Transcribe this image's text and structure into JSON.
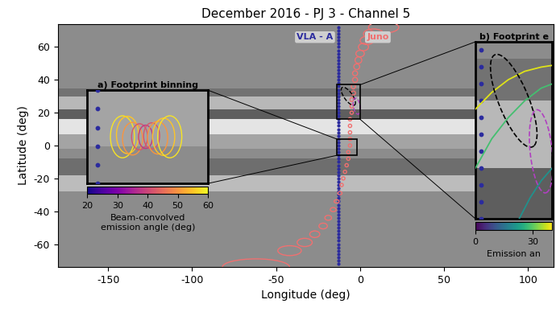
{
  "chart_data": {
    "type": "map",
    "title": "December 2016 - PJ 3 - Channel 5",
    "x_label": "Longitude (deg)",
    "y_label": "Latitude (deg)",
    "xlim": [
      -180,
      115
    ],
    "ylim": [
      -74,
      74
    ],
    "xticks": [
      -150,
      -100,
      -50,
      0,
      50,
      100
    ],
    "yticks": [
      -60,
      -40,
      -20,
      0,
      20,
      40,
      60
    ],
    "background": "#8c8c8c",
    "bands": [
      {
        "lat": [
          7,
          16
        ],
        "color": "#e4e4e4"
      },
      {
        "lat": [
          -2,
          7
        ],
        "color": "#a4a4a4"
      },
      {
        "lat": [
          16,
          22
        ],
        "color": "#5e5e5e"
      },
      {
        "lat": [
          22,
          30
        ],
        "color": "#b8b8b8"
      },
      {
        "lat": [
          30,
          35
        ],
        "color": "#727272"
      },
      {
        "lat": [
          -18,
          -8
        ],
        "color": "#6e6e6e"
      },
      {
        "lat": [
          -28,
          -18
        ],
        "color": "#bcbcbc"
      }
    ],
    "series": [
      {
        "name": "VLA - A",
        "color": "#2b2b9e",
        "lon": [
          -13,
          -13,
          -13,
          -13,
          -13,
          -13,
          -13,
          -13,
          -13,
          -13,
          -13,
          -13,
          -13,
          -13,
          -13,
          -13,
          -13,
          -13,
          -13,
          -13,
          -13,
          -13,
          -13,
          -13,
          -13,
          -13,
          -13,
          -13,
          -13,
          -13,
          -13,
          -13,
          -13,
          -13,
          -13,
          -13,
          -13,
          -13,
          -13,
          -13,
          -13,
          -13,
          -13,
          -13,
          -13,
          -13,
          -13,
          -13,
          -13,
          -13,
          -13,
          -13,
          -13,
          -13,
          -13,
          -13,
          -13,
          -13,
          -13,
          -13,
          -13,
          -13,
          -13,
          -13,
          -13,
          -13,
          -13,
          -13,
          -13,
          -13,
          -13,
          -13,
          -13
        ],
        "lat": [
          -72,
          -70,
          -68,
          -66,
          -64,
          -62,
          -60,
          -58,
          -56,
          -54,
          -52,
          -50,
          -48,
          -46,
          -44,
          -42,
          -40,
          -38,
          -36,
          -34,
          -32,
          -30,
          -28,
          -26,
          -24,
          -22,
          -20,
          -18,
          -16,
          -14,
          -12,
          -10,
          -8,
          -6,
          -4,
          -2,
          0,
          2,
          4,
          6,
          8,
          10,
          12,
          14,
          16,
          18,
          20,
          22,
          24,
          26,
          28,
          30,
          32,
          34,
          36,
          38,
          40,
          42,
          44,
          46,
          48,
          50,
          52,
          54,
          56,
          58,
          60,
          62,
          64,
          66,
          68,
          70,
          72
        ]
      },
      {
        "name": "Juno",
        "color": "#f07070",
        "lon": [
          -62,
          -42,
          -33,
          -27,
          -22,
          -19,
          -16,
          -14,
          -12,
          -11,
          -10,
          -9,
          -8,
          -7,
          -7,
          -6,
          -6,
          -6,
          -6,
          -6,
          -5,
          -5,
          -5,
          -4,
          -4,
          -3,
          -3,
          -2,
          -1,
          0,
          2,
          4,
          8,
          14
        ],
        "lat": [
          -74,
          -64,
          -59,
          -54,
          -49,
          -44,
          -39,
          -34,
          -29,
          -24,
          -20,
          -16,
          -12,
          -8,
          -4,
          0,
          4,
          8,
          12,
          16,
          20,
          24,
          28,
          32,
          36,
          40,
          44,
          48,
          52,
          56,
          60,
          64,
          68,
          72
        ],
        "width": [
          40,
          14,
          9,
          6,
          5,
          4,
          3.5,
          3,
          2.5,
          2,
          2,
          2,
          2,
          2,
          2,
          2,
          2,
          2,
          2,
          2,
          2,
          2,
          2,
          2.5,
          2.5,
          3,
          3,
          3.5,
          4,
          5,
          6,
          8,
          12,
          18
        ],
        "height": [
          10,
          6,
          5,
          4,
          3.5,
          3,
          2.5,
          2,
          2,
          2,
          2,
          2,
          2,
          2,
          2,
          2,
          2,
          2,
          2,
          2,
          2,
          2.5,
          2.5,
          2.5,
          3,
          3,
          3,
          3.5,
          4,
          4,
          4.5,
          5,
          6,
          7
        ]
      }
    ],
    "insets": [
      {
        "title": "a) Footprint binning",
        "xlim": [
          -14,
          -2
        ],
        "ylim": [
          -6,
          4
        ],
        "colorbar": {
          "label": "Beam-convolved\nemission angle (deg)",
          "range": [
            20,
            60
          ],
          "ticks": [
            20,
            30,
            40,
            50,
            60
          ]
        },
        "footprints": {
          "lon": [
            -10.5,
            -10,
            -9.5,
            -8.8,
            -8.2,
            -7.6,
            -7,
            -6.4,
            -5.8
          ],
          "lat": [
            -1,
            -0.8,
            -1.2,
            -1,
            -1,
            -0.9,
            -1.1,
            -1,
            -1
          ],
          "width": [
            2.4,
            2.2,
            2,
            1.6,
            1.4,
            1.6,
            2,
            2.2,
            2.4
          ],
          "height": [
            4.5,
            4,
            3.5,
            2.8,
            2.5,
            2.8,
            3.5,
            4,
            4.5
          ],
          "emission_angle": [
            58,
            55,
            50,
            42,
            38,
            42,
            50,
            55,
            58
          ]
        }
      },
      {
        "title": "b) Footprint e",
        "xlim": [
          -14,
          0
        ],
        "ylim": [
          16,
          37
        ],
        "colorbar": {
          "label": "Emission an",
          "range": [
            0,
            40
          ],
          "ticks": [
            0,
            30
          ]
        },
        "outlines": [
          {
            "color": "#000000",
            "lon": -7,
            "lat": 30,
            "width": 5,
            "height": 13
          },
          {
            "color": "#b040c0",
            "lon": -2,
            "lat": 24,
            "width": 4,
            "height": 10
          }
        ],
        "contours": [
          {
            "emission_angle": 38,
            "lon": [
              -14,
              -11,
              -8,
              -5,
              -2,
              0
            ],
            "lat": [
              29,
              31,
              32.5,
              33.5,
              34,
              34.2
            ]
          },
          {
            "emission_angle": 28,
            "lon": [
              -14,
              -11,
              -8,
              -5,
              -2,
              0
            ],
            "lat": [
              22,
              25.5,
              28,
              30,
              31.5,
              32
            ]
          },
          {
            "emission_angle": 20,
            "lon": [
              -6,
              -4,
              -2,
              0
            ],
            "lat": [
              16,
              18.5,
              20.5,
              22
            ]
          }
        ]
      }
    ]
  }
}
